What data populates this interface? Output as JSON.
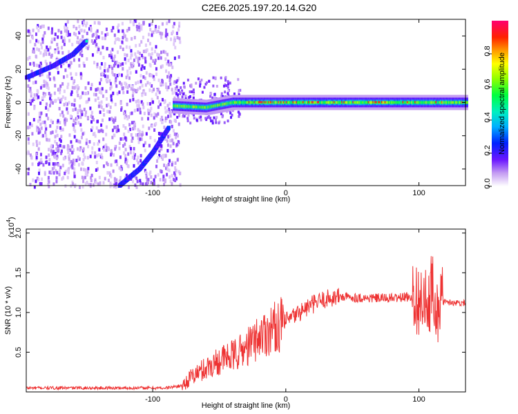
{
  "title": "C2E6.2025.197.20.14.G20",
  "chart_data": [
    {
      "type": "heatmap",
      "xlabel": "Height of straight line (km)",
      "ylabel": "Frequency (Hz)",
      "xlim": [
        -195,
        135
      ],
      "ylim": [
        -50,
        50
      ],
      "xticks": [
        -100,
        0,
        100
      ],
      "yticks": [
        -40,
        -20,
        0,
        20,
        40
      ],
      "colorbar": {
        "label": "Normalized spectral amplitude",
        "range": [
          0,
          1
        ],
        "ticks": [
          "0.0",
          "0.2",
          "0.4",
          "0.6",
          "0.8"
        ]
      },
      "features": [
        {
          "name": "rising track",
          "x": [
            -195,
            -175,
            -160,
            -150
          ],
          "y": [
            15,
            22,
            29,
            37
          ]
        },
        {
          "name": "falling track",
          "x": [
            -125,
            -110,
            -100,
            -88
          ],
          "y": [
            -50,
            -40,
            -30,
            -15
          ]
        },
        {
          "name": "carrier line",
          "x": [
            -85,
            -60,
            -40,
            0,
            50,
            100,
            135
          ],
          "y": [
            -2,
            -3,
            0,
            0,
            0,
            0,
            0
          ]
        }
      ]
    },
    {
      "type": "line",
      "xlabel": "Height of straight line (km)",
      "ylabel": "SNR (10 * v/v)",
      "yscale_label": "(x10",
      "yscale_exp": "4",
      "yscale_close": ")",
      "xlim": [
        -195,
        135
      ],
      "ylim": [
        0,
        2.05
      ],
      "xticks": [
        -100,
        0,
        100
      ],
      "yticks": [
        "0.5",
        "1.0",
        "1.5",
        "2.0"
      ],
      "color": "#ee3333",
      "series": [
        {
          "x": [
            -195,
            -160,
            -120,
            -90,
            -78,
            -70,
            -60,
            -50,
            -40,
            -30,
            -20,
            -10,
            0,
            10,
            20,
            30,
            40,
            60,
            80,
            95,
            100,
            105,
            108,
            110,
            112,
            115,
            120,
            135
          ],
          "y": [
            0.05,
            0.05,
            0.05,
            0.05,
            0.08,
            0.2,
            0.3,
            0.4,
            0.45,
            0.55,
            0.7,
            0.8,
            0.88,
            1.0,
            1.1,
            1.17,
            1.2,
            1.18,
            1.18,
            1.2,
            1.15,
            1.1,
            1.0,
            1.5,
            0.8,
            1.15,
            1.13,
            1.12
          ]
        }
      ]
    }
  ]
}
